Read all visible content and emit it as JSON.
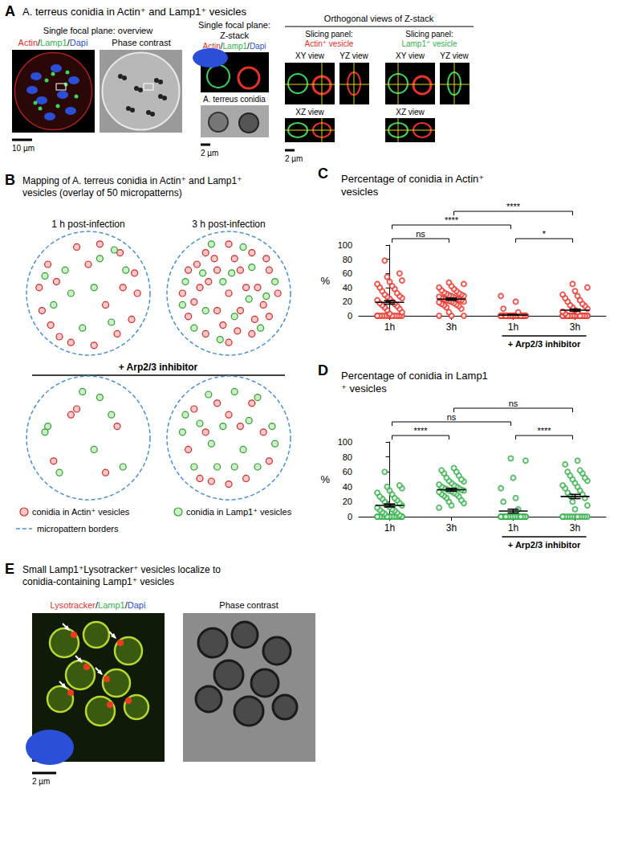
{
  "panel_A": {
    "letter": "A",
    "title": "A. terreus conidia in Actin⁺ and Lamp1⁺ vesicles",
    "overview": {
      "heading": "Single focal plane: overview",
      "channels": [
        {
          "text": "Actin",
          "color": "#e8322a"
        },
        {
          "text": "Lamp1",
          "color": "#2fb34a"
        },
        {
          "text": "Dapi",
          "color": "#2b4fd6"
        }
      ],
      "separator": "/",
      "phase_label": "Phase contrast",
      "scale_bar": "10 µm"
    },
    "zstack": {
      "heading": "Single focal plane: Z-stack",
      "conidia_label": "A. terreus conidia",
      "scale_bar": "2 µm"
    },
    "orthogonal": {
      "heading": "Orthogonal views of Z-stack",
      "slices": [
        {
          "prefix": "Slicing panel:",
          "label": "Actin⁺ vesicle",
          "color": "#e8322a"
        },
        {
          "prefix": "Slicing panel:",
          "label": "Lamp1⁺ vesicle",
          "color": "#2fb34a"
        }
      ],
      "views": [
        "XY view",
        "YZ view",
        "XZ view"
      ],
      "scale_bar": "2 µm"
    }
  },
  "panel_B": {
    "letter": "B",
    "title": "Mapping of A. terreus conidia in Actin⁺ and Lamp1⁺ vesicles (overlay of 50 micropatterns)",
    "columns": [
      "1 h post-infection",
      "3 h post-infection"
    ],
    "condition": "+ Arp2/3 inhibitor",
    "legend": [
      {
        "text": "conidia in Actin⁺ vesicles",
        "color": "#d62728"
      },
      {
        "text": "conidia in Lamp1⁺ vesicles",
        "color": "#2ca02c"
      },
      {
        "text": "micropattern borders",
        "color": "#4a90d9"
      }
    ],
    "maps": [
      {
        "points": [
          [
            [
              -0.8,
              -0.3
            ],
            [
              -0.85,
              0.1
            ],
            [
              -0.7,
              0.5
            ],
            [
              -0.5,
              -0.75
            ],
            [
              -0.3,
              -0.85
            ],
            [
              0.1,
              -0.9
            ],
            [
              0.5,
              -0.7
            ],
            [
              0.75,
              -0.45
            ],
            [
              0.85,
              0.0
            ],
            [
              0.8,
              0.35
            ],
            [
              0.55,
              0.7
            ],
            [
              0.2,
              0.85
            ],
            [
              -0.2,
              0.8
            ],
            [
              -0.55,
              0.2
            ],
            [
              0.3,
              -0.2
            ],
            [
              0.6,
              0.1
            ],
            [
              -0.65,
              -0.55
            ],
            [
              0.0,
              0.5
            ]
          ],
          [
            [
              -0.6,
              -0.2
            ],
            [
              -0.4,
              0.4
            ],
            [
              0.2,
              0.6
            ],
            [
              0.4,
              -0.5
            ],
            [
              0.65,
              0.4
            ],
            [
              -0.1,
              -0.6
            ],
            [
              0.1,
              0.1
            ],
            [
              -0.3,
              0.0
            ],
            [
              0.45,
              0.75
            ],
            [
              -0.75,
              0.3
            ]
          ]
        ]
      },
      {
        "points": [
          [
            [
              -0.8,
              0
            ],
            [
              -0.7,
              0.4
            ],
            [
              -0.7,
              -0.4
            ],
            [
              -0.4,
              0.7
            ],
            [
              -0.4,
              -0.7
            ],
            [
              0,
              0.85
            ],
            [
              0,
              -0.85
            ],
            [
              0.4,
              0.7
            ],
            [
              0.4,
              -0.7
            ],
            [
              0.7,
              0.4
            ],
            [
              0.7,
              -0.4
            ],
            [
              0.85,
              0
            ],
            [
              -0.5,
              0.1
            ],
            [
              -0.2,
              0.4
            ],
            [
              0.2,
              0.4
            ],
            [
              0.5,
              0.1
            ],
            [
              0.2,
              -0.3
            ],
            [
              -0.2,
              -0.3
            ],
            [
              0,
              0
            ],
            [
              -0.6,
              -0.15
            ],
            [
              0.6,
              -0.2
            ],
            [
              0.3,
              0.1
            ],
            [
              -0.35,
              0.2
            ],
            [
              0.1,
              0.6
            ],
            [
              -0.1,
              -0.55
            ],
            [
              0.45,
              -0.45
            ],
            [
              -0.55,
              0.5
            ],
            [
              0.15,
              -0.65
            ],
            [
              -0.25,
              0.6
            ],
            [
              0.65,
              0.6
            ]
          ],
          [
            [
              -0.75,
              0.2
            ],
            [
              -0.6,
              -0.6
            ],
            [
              -0.3,
              0.85
            ],
            [
              0.25,
              0.8
            ],
            [
              0.8,
              0.2
            ],
            [
              0.55,
              -0.6
            ],
            [
              -0.1,
              0.2
            ],
            [
              0.35,
              -0.1
            ],
            [
              -0.4,
              -0.3
            ],
            [
              0.1,
              -0.4
            ],
            [
              -0.15,
              -0.8
            ],
            [
              0.65,
              -0.05
            ],
            [
              -0.45,
              0.35
            ],
            [
              0.05,
              0.35
            ],
            [
              -0.8,
              -0.2
            ],
            [
              0.4,
              0.45
            ]
          ]
        ]
      },
      {
        "points": [
          [
            [
              -0.3,
              0.4
            ],
            [
              -0.2,
              0.5
            ],
            [
              0.5,
              0.2
            ],
            [
              0.3,
              -0.6
            ],
            [
              -0.6,
              -0.4
            ]
          ],
          [
            [
              -0.75,
              0.1
            ],
            [
              -0.7,
              0.2
            ],
            [
              0.1,
              -0.2
            ],
            [
              0.2,
              0.7
            ],
            [
              0.6,
              -0.5
            ],
            [
              -0.1,
              0.8
            ],
            [
              0.4,
              0.4
            ],
            [
              -0.5,
              -0.6
            ]
          ]
        ]
      },
      {
        "points": [
          [
            [
              -0.5,
              -0.7
            ],
            [
              -0.3,
              -0.75
            ],
            [
              0.0,
              -0.8
            ],
            [
              0.3,
              -0.7
            ],
            [
              -0.7,
              -0.2
            ],
            [
              -0.4,
              0.1
            ],
            [
              0.2,
              0.2
            ],
            [
              0.6,
              0.1
            ],
            [
              0.4,
              0.6
            ],
            [
              -0.2,
              0.6
            ],
            [
              0.7,
              -0.4
            ],
            [
              -0.6,
              0.5
            ],
            [
              0.0,
              0.4
            ]
          ],
          [
            [
              -0.8,
              0.1
            ],
            [
              -0.6,
              -0.5
            ],
            [
              -0.2,
              -0.5
            ],
            [
              0.1,
              -0.5
            ],
            [
              0.5,
              -0.5
            ],
            [
              -0.5,
              0.25
            ],
            [
              -0.1,
              0.2
            ],
            [
              0.35,
              0.3
            ],
            [
              0.75,
              0.2
            ],
            [
              -0.35,
              0.75
            ],
            [
              0.1,
              0.8
            ],
            [
              0.5,
              0.7
            ],
            [
              -0.75,
              0.4
            ],
            [
              0.25,
              -0.2
            ],
            [
              0.8,
              -0.1
            ],
            [
              -0.3,
              -0.1
            ]
          ]
        ]
      }
    ]
  },
  "panel_E": {
    "letter": "E",
    "title": "Small Lamp1⁺Lysotracker⁺ vesicles localize to conidia-containing Lamp1⁺ vesicles",
    "channels": [
      {
        "text": "Lysotracker",
        "color": "#e8322a"
      },
      {
        "text": "Lamp1",
        "color": "#2fb34a"
      },
      {
        "text": "Dapi",
        "color": "#2b4fd6"
      }
    ],
    "separator": "/",
    "phase_label": "Phase contrast",
    "scale_bar": "2 µm"
  },
  "chart_data": [
    {
      "type": "scatter",
      "letter": "C",
      "title": "Percentage of conidia in Actin⁺ vesicles",
      "y_label": "%",
      "categories": [
        "1h",
        "3h",
        "1h",
        "3h"
      ],
      "groups": [
        null,
        null,
        "+ Arp2/3 inhibitor",
        "+ Arp2/3 inhibitor"
      ],
      "color": "#e8332a",
      "marker": "open_circle",
      "grid": false,
      "values": [
        [
          0,
          0,
          0,
          0,
          0,
          0,
          0,
          0,
          0,
          0,
          0,
          0,
          3,
          5,
          8,
          10,
          12,
          14,
          15,
          17,
          18,
          20,
          22,
          24,
          25,
          27,
          28,
          30,
          32,
          35,
          38,
          40,
          42,
          45,
          48,
          50,
          55,
          60,
          78
        ],
        [
          0,
          0,
          0,
          5,
          10,
          12,
          14,
          15,
          16,
          17,
          18,
          19,
          20,
          20,
          21,
          22,
          22,
          23,
          24,
          24,
          25,
          26,
          27,
          28,
          28,
          29,
          30,
          31,
          32,
          33,
          35,
          36,
          38,
          40,
          42,
          45,
          47
        ],
        [
          0,
          0,
          0,
          0,
          0,
          0,
          0,
          0,
          0,
          0,
          0,
          0,
          0,
          0,
          0,
          0,
          0,
          0,
          0,
          0,
          0,
          0,
          0,
          0,
          0,
          0,
          0,
          0,
          0,
          0,
          5,
          10,
          20,
          28
        ],
        [
          0,
          0,
          0,
          0,
          0,
          0,
          0,
          0,
          0,
          0,
          0,
          0,
          0,
          0,
          0,
          0,
          0,
          0,
          0,
          0,
          3,
          5,
          6,
          8,
          10,
          12,
          14,
          15,
          17,
          20,
          22,
          25,
          28,
          30,
          35,
          40,
          45
        ]
      ],
      "means": [
        19,
        23.5,
        1,
        8
      ],
      "sem": [
        2.5,
        1.5,
        0.8,
        1.5
      ],
      "comparisons": [
        {
          "pair": [
            0,
            1
          ],
          "label": "ns"
        },
        {
          "pair": [
            2,
            3
          ],
          "label": "*"
        },
        {
          "pair": [
            0,
            2
          ],
          "label": "****"
        },
        {
          "pair": [
            1,
            3
          ],
          "label": "****"
        }
      ],
      "ylim": [
        0,
        100
      ],
      "yticks": [
        0,
        20,
        40,
        60,
        80,
        100
      ]
    },
    {
      "type": "scatter",
      "letter": "D",
      "title": "Percentage of conidia in Lamp1⁺ vesicles",
      "y_label": "%",
      "categories": [
        "1h",
        "3h",
        "1h",
        "3h"
      ],
      "groups": [
        null,
        null,
        "+ Arp2/3 inhibitor",
        "+ Arp2/3 inhibitor"
      ],
      "color": "#35b04a",
      "marker": "open_circle",
      "grid": false,
      "values": [
        [
          0,
          0,
          0,
          0,
          0,
          0,
          0,
          0,
          0,
          0,
          0,
          0,
          0,
          0,
          0,
          2,
          4,
          5,
          6,
          8,
          9,
          10,
          12,
          13,
          15,
          16,
          18,
          20,
          22,
          24,
          25,
          27,
          30,
          32,
          35,
          38,
          40,
          42,
          60
        ],
        [
          12,
          15,
          18,
          20,
          22,
          25,
          27,
          28,
          30,
          30,
          32,
          33,
          34,
          35,
          35,
          36,
          37,
          38,
          38,
          40,
          40,
          42,
          43,
          45,
          47,
          48,
          50,
          52,
          55,
          58,
          60,
          62,
          65
        ],
        [
          0,
          0,
          0,
          0,
          0,
          0,
          0,
          0,
          0,
          0,
          0,
          0,
          0,
          0,
          0,
          0,
          0,
          0,
          0,
          0,
          0,
          0,
          0,
          0,
          0,
          0,
          0,
          0,
          0,
          0,
          10,
          20,
          25,
          38,
          52,
          75,
          78
        ],
        [
          0,
          0,
          0,
          0,
          0,
          0,
          0,
          0,
          0,
          0,
          0,
          0,
          10,
          15,
          20,
          25,
          28,
          30,
          32,
          35,
          38,
          40,
          42,
          45,
          48,
          50,
          52,
          55,
          58,
          60,
          62,
          70,
          75
        ]
      ],
      "means": [
        15,
        36,
        7.5,
        27
      ],
      "sem": [
        2,
        1.8,
        2.5,
        2.8
      ],
      "comparisons": [
        {
          "pair": [
            0,
            1
          ],
          "label": "****"
        },
        {
          "pair": [
            2,
            3
          ],
          "label": "****"
        },
        {
          "pair": [
            0,
            2
          ],
          "label": "ns"
        },
        {
          "pair": [
            1,
            3
          ],
          "label": "ns"
        }
      ],
      "ylim": [
        0,
        100
      ],
      "yticks": [
        0,
        20,
        40,
        60,
        80,
        100
      ]
    }
  ]
}
